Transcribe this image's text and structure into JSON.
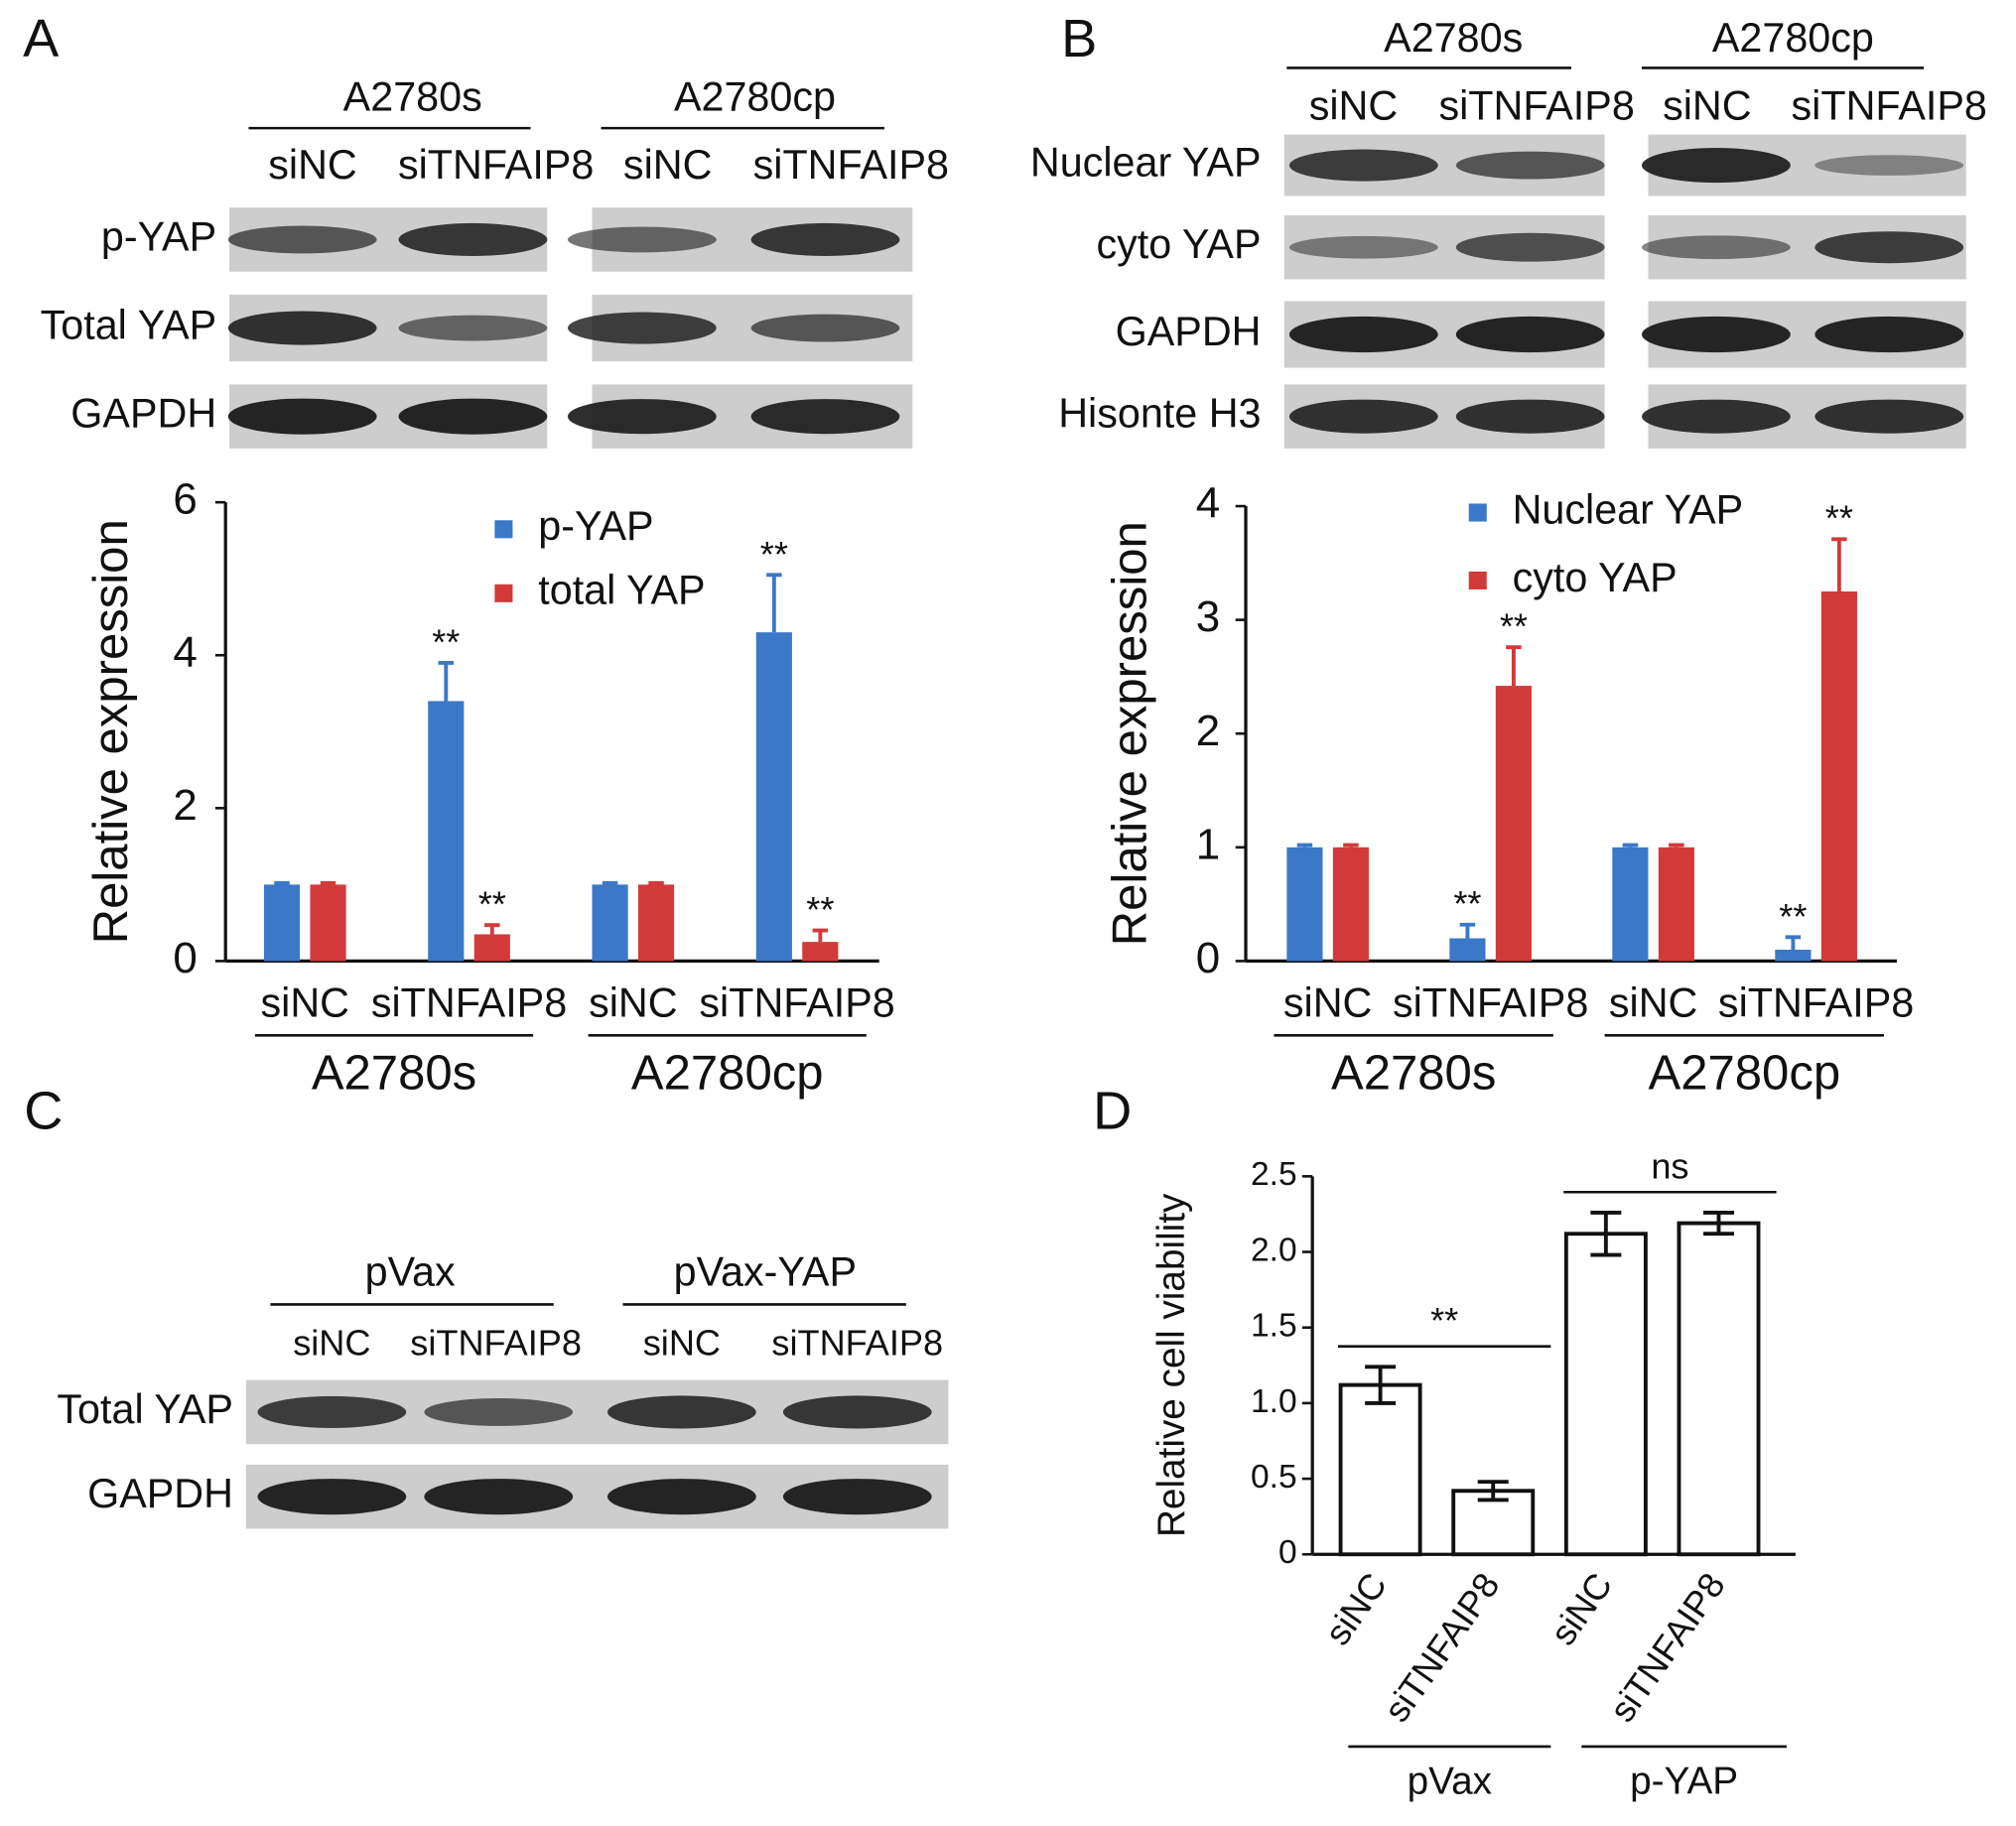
{
  "panels": [
    "A",
    "B",
    "C",
    "D"
  ],
  "blots": [
    {
      "groups": [
        "A2780s",
        "A2780cp"
      ],
      "lanes": [
        "siNC",
        "siTNFAIP8",
        "siNC",
        "siTNFAIP8"
      ],
      "rows": [
        "p-YAP",
        "Total YAP",
        "GAPDH"
      ]
    },
    {
      "groups": [
        "A2780s",
        "A2780cp"
      ],
      "lanes": [
        "siNC",
        "siTNFAIP8",
        "siNC",
        "siTNFAIP8"
      ],
      "rows": [
        "Nuclear YAP",
        "cyto YAP",
        "GAPDH",
        "Hisonte H3"
      ]
    },
    {
      "groups": [
        "pVax",
        "pVax-YAP"
      ],
      "lanes": [
        "siNC",
        "siTNFAIP8",
        "siNC",
        "siTNFAIP8"
      ],
      "rows": [
        "Total YAP",
        "GAPDH"
      ]
    }
  ],
  "chart_data": [
    {
      "type": "bar",
      "y_label": "Relative expression",
      "ylim": [
        0,
        6
      ],
      "yticks": [
        0,
        2,
        4,
        6
      ],
      "categories": [
        "siNC",
        "siTNFAIP8",
        "siNC",
        "siTNFAIP8"
      ],
      "groups": [
        "A2780s",
        "A2780cp"
      ],
      "series": [
        {
          "name": "p-YAP",
          "color": "#3b78c8",
          "values": [
            1,
            3.4,
            1,
            4.3
          ],
          "errors": [
            0.02,
            0.5,
            0.02,
            0.75
          ],
          "annotations": [
            null,
            "**",
            null,
            "**"
          ]
        },
        {
          "name": "total YAP",
          "color": "#d23a3a",
          "values": [
            1,
            0.35,
            1,
            0.25
          ],
          "errors": [
            0.02,
            0.12,
            0.02,
            0.15
          ],
          "annotations": [
            null,
            "**",
            null,
            "**"
          ]
        }
      ]
    },
    {
      "type": "bar",
      "y_label": "Relative expression",
      "ylim": [
        0,
        4
      ],
      "yticks": [
        0,
        1,
        2,
        3,
        4
      ],
      "categories": [
        "siNC",
        "siTNFAIP8",
        "siNC",
        "siTNFAIP8"
      ],
      "groups": [
        "A2780s",
        "A2780cp"
      ],
      "series": [
        {
          "name": "Nuclear YAP",
          "color": "#3b78c8",
          "values": [
            1,
            0.2,
            1,
            0.1
          ],
          "errors": [
            0.02,
            0.12,
            0.02,
            0.11
          ],
          "annotations": [
            null,
            "**",
            null,
            "**"
          ]
        },
        {
          "name": "cyto YAP",
          "color": "#d23a3a",
          "values": [
            1,
            2.42,
            1,
            3.25
          ],
          "errors": [
            0.02,
            0.34,
            0.02,
            0.46
          ],
          "annotations": [
            null,
            "**",
            null,
            "**"
          ]
        }
      ]
    },
    {
      "type": "bar",
      "y_label": "Relative cell viability",
      "ylim": [
        0,
        2.5
      ],
      "yticks": [
        0,
        {
          "value": 0.5,
          "label": "0.5"
        },
        {
          "value": 1,
          "label": "1.0"
        },
        {
          "value": 1.5,
          "label": "1.5"
        },
        {
          "value": 2,
          "label": "2.0"
        },
        {
          "value": 2.5,
          "label": "2.5"
        }
      ],
      "categories": [
        "siNC",
        "siTNFAIP8",
        "siNC",
        "siTNFAIP8"
      ],
      "groups": [
        "pVax",
        "p-YAP"
      ],
      "significance": [
        "**",
        "ns"
      ],
      "series": [
        {
          "color": "#ffffff",
          "values": [
            1.12,
            0.42,
            2.12,
            2.19
          ],
          "errors": [
            0.12,
            0.06,
            0.14,
            0.07
          ]
        }
      ]
    }
  ]
}
